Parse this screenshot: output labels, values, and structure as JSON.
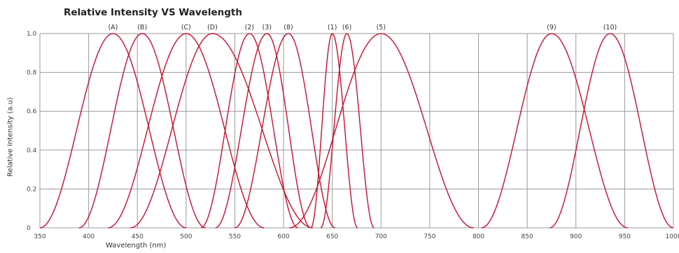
{
  "chart_data": {
    "type": "line",
    "title": "Relative Intensity VS Wavelength",
    "xlabel": "Wavelength (nm)",
    "ylabel": "Relative Intensity (a.u)",
    "xlim": [
      350,
      1000
    ],
    "ylim": [
      0,
      1.0
    ],
    "x_ticks": [
      350,
      400,
      450,
      500,
      550,
      600,
      650,
      700,
      750,
      800,
      850,
      900,
      950,
      1000
    ],
    "y_ticks": [
      0,
      0.2,
      0.4,
      0.6,
      0.8,
      1.0
    ],
    "y_tick_labels": [
      "0",
      "0.2",
      "0.4",
      "0.6",
      "0.8",
      "1.0"
    ],
    "grid": true,
    "line_color": "#c8102e",
    "series": [
      {
        "name": "(A)",
        "peak": 425,
        "x_min": 350,
        "x_max": 500,
        "values": [
          [
            350,
            0
          ],
          [
            425,
            1.0
          ],
          [
            500,
            0
          ]
        ]
      },
      {
        "name": "(B)",
        "peak": 455,
        "x_min": 390,
        "x_max": 520,
        "values": [
          [
            390,
            0
          ],
          [
            455,
            1.0
          ],
          [
            520,
            0
          ]
        ]
      },
      {
        "name": "(C)",
        "peak": 500,
        "x_min": 420,
        "x_max": 580,
        "values": [
          [
            420,
            0
          ],
          [
            500,
            1.0
          ],
          [
            580,
            0
          ]
        ]
      },
      {
        "name": "(D)",
        "peak": 527,
        "x_min": 443,
        "x_max": 630,
        "values": [
          [
            443,
            0
          ],
          [
            527,
            1.0
          ],
          [
            630,
            0
          ]
        ]
      },
      {
        "name": "(2)",
        "peak": 565,
        "x_min": 515,
        "x_max": 615,
        "values": [
          [
            515,
            0
          ],
          [
            565,
            1.0
          ],
          [
            615,
            0
          ]
        ]
      },
      {
        "name": "(3)",
        "peak": 583,
        "x_min": 530,
        "x_max": 628,
        "values": [
          [
            530,
            0
          ],
          [
            583,
            1.0
          ],
          [
            628,
            0
          ]
        ]
      },
      {
        "name": "(8)",
        "peak": 605,
        "x_min": 550,
        "x_max": 653,
        "values": [
          [
            550,
            0
          ],
          [
            605,
            1.0
          ],
          [
            653,
            0
          ]
        ]
      },
      {
        "name": "(1)",
        "peak": 650,
        "x_min": 628,
        "x_max": 676,
        "values": [
          [
            628,
            0
          ],
          [
            650,
            1.0
          ],
          [
            676,
            0
          ]
        ]
      },
      {
        "name": "(6)",
        "peak": 665,
        "x_min": 638,
        "x_max": 693,
        "values": [
          [
            638,
            0
          ],
          [
            665,
            1.0
          ],
          [
            693,
            0
          ]
        ]
      },
      {
        "name": "(5)",
        "peak": 700,
        "x_min": 606,
        "x_max": 795,
        "values": [
          [
            606,
            0
          ],
          [
            700,
            1.0
          ],
          [
            795,
            0
          ]
        ]
      },
      {
        "name": "(9)",
        "peak": 875,
        "x_min": 803,
        "x_max": 953,
        "values": [
          [
            803,
            0
          ],
          [
            875,
            1.0
          ],
          [
            953,
            0
          ]
        ]
      },
      {
        "name": "(10)",
        "peak": 935,
        "x_min": 873,
        "x_max": 1000,
        "values": [
          [
            873,
            0
          ],
          [
            935,
            1.0
          ],
          [
            1000,
            0
          ]
        ]
      }
    ]
  }
}
